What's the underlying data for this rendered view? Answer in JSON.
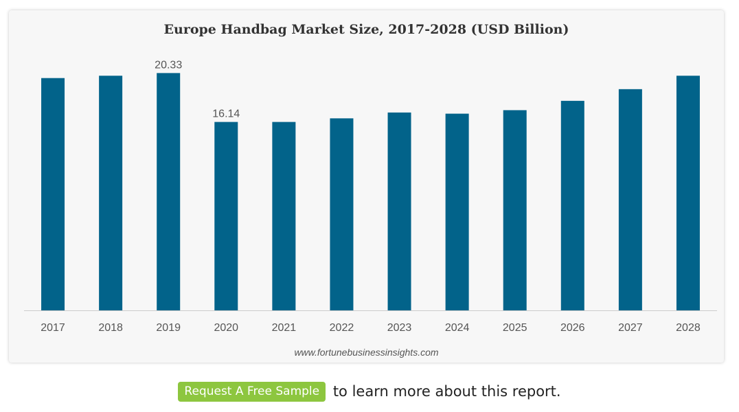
{
  "chart_data": {
    "type": "bar",
    "title": "Europe Handbag Market Size, 2017-2028 (USD Billion)",
    "categories": [
      "2017",
      "2018",
      "2019",
      "2020",
      "2021",
      "2022",
      "2023",
      "2024",
      "2025",
      "2026",
      "2027",
      "2028"
    ],
    "values": [
      19.9,
      20.1,
      20.33,
      16.14,
      16.14,
      16.45,
      16.95,
      16.85,
      17.15,
      17.95,
      18.95,
      20.1
    ],
    "data_labels": [
      "",
      "",
      "20.33",
      "16.14",
      "",
      "",
      "",
      "",
      "",
      "",
      "",
      ""
    ],
    "ylim": [
      0,
      22
    ],
    "xlabel": "",
    "ylabel": "",
    "grid": false,
    "bar_color": "#02638a",
    "axis_color": "#cccccc"
  },
  "source": "www.fortunebusinessinsights.com",
  "cta": {
    "button_label": "Request A Free Sample",
    "text": "to learn more about this report.",
    "button_color": "#8dc63f"
  }
}
